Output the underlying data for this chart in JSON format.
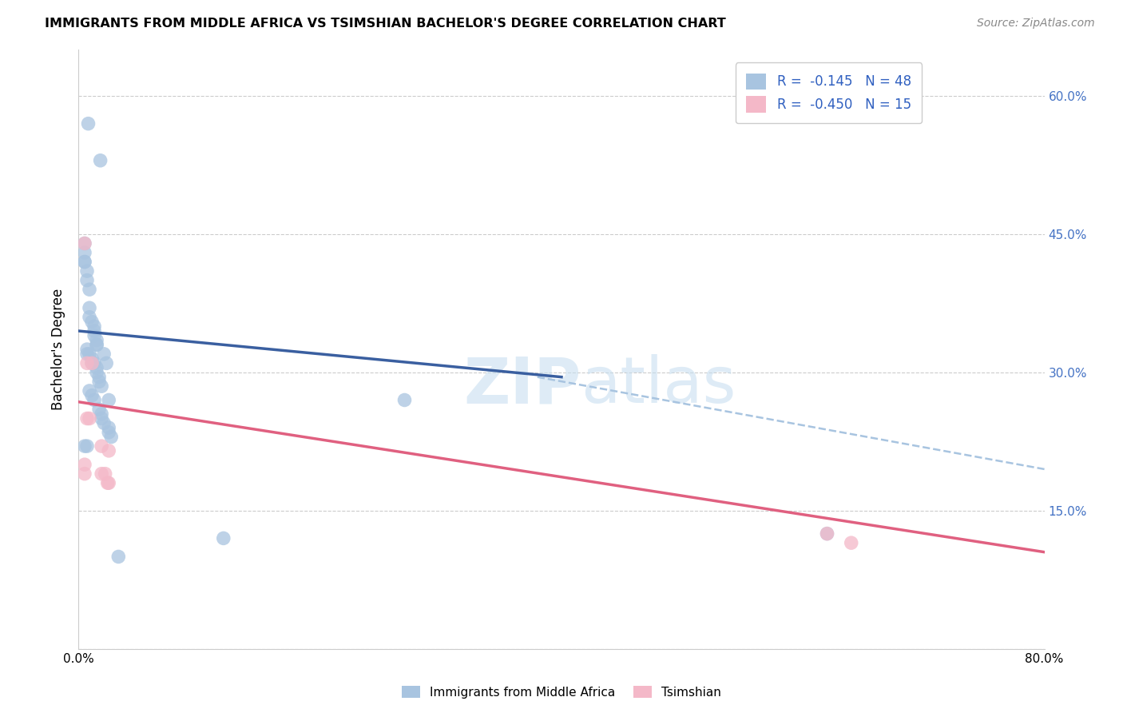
{
  "title": "IMMIGRANTS FROM MIDDLE AFRICA VS TSIMSHIAN BACHELOR'S DEGREE CORRELATION CHART",
  "source": "Source: ZipAtlas.com",
  "ylabel": "Bachelor's Degree",
  "xlim": [
    0.0,
    0.8
  ],
  "ylim": [
    0.0,
    0.65
  ],
  "xticks": [
    0.0,
    0.1,
    0.2,
    0.3,
    0.4,
    0.5,
    0.6,
    0.7,
    0.8
  ],
  "xticklabels": [
    "0.0%",
    "",
    "",
    "",
    "",
    "",
    "",
    "",
    "80.0%"
  ],
  "yticks": [
    0.0,
    0.15,
    0.3,
    0.45,
    0.6
  ],
  "yticklabels": [
    "",
    "15.0%",
    "30.0%",
    "45.0%",
    "60.0%"
  ],
  "grid_color": "#cccccc",
  "blue_color": "#a8c4e0",
  "pink_color": "#f4b8c8",
  "blue_line_color": "#3a5fa0",
  "pink_line_color": "#e06080",
  "dashed_line_color": "#a8c4e0",
  "watermark_zip": "ZIP",
  "watermark_atlas": "atlas",
  "legend_v1": "-0.145",
  "legend_n1": "N = 48",
  "legend_v2": "-0.450",
  "legend_n2": "N = 15",
  "blue_scatter_x": [
    0.008,
    0.018,
    0.005,
    0.005,
    0.005,
    0.005,
    0.007,
    0.007,
    0.009,
    0.009,
    0.009,
    0.011,
    0.013,
    0.013,
    0.013,
    0.015,
    0.015,
    0.015,
    0.007,
    0.007,
    0.009,
    0.011,
    0.011,
    0.013,
    0.015,
    0.015,
    0.017,
    0.017,
    0.019,
    0.009,
    0.011,
    0.013,
    0.017,
    0.019,
    0.019,
    0.021,
    0.025,
    0.025,
    0.027,
    0.021,
    0.023,
    0.005,
    0.007,
    0.025,
    0.27,
    0.62,
    0.12,
    0.033
  ],
  "blue_scatter_y": [
    0.57,
    0.53,
    0.44,
    0.43,
    0.42,
    0.42,
    0.41,
    0.4,
    0.39,
    0.37,
    0.36,
    0.355,
    0.35,
    0.345,
    0.34,
    0.335,
    0.33,
    0.33,
    0.325,
    0.32,
    0.32,
    0.315,
    0.31,
    0.31,
    0.305,
    0.3,
    0.295,
    0.29,
    0.285,
    0.28,
    0.275,
    0.27,
    0.26,
    0.255,
    0.25,
    0.245,
    0.24,
    0.235,
    0.23,
    0.32,
    0.31,
    0.22,
    0.22,
    0.27,
    0.27,
    0.125,
    0.12,
    0.1
  ],
  "pink_scatter_x": [
    0.005,
    0.005,
    0.005,
    0.007,
    0.007,
    0.009,
    0.011,
    0.019,
    0.025,
    0.019,
    0.025,
    0.022,
    0.024,
    0.62,
    0.64
  ],
  "pink_scatter_y": [
    0.44,
    0.2,
    0.19,
    0.31,
    0.25,
    0.25,
    0.31,
    0.22,
    0.215,
    0.19,
    0.18,
    0.19,
    0.18,
    0.125,
    0.115
  ],
  "blue_trend_x": [
    0.0,
    0.4
  ],
  "blue_trend_y": [
    0.345,
    0.295
  ],
  "pink_trend_x": [
    0.0,
    0.8
  ],
  "pink_trend_y": [
    0.268,
    0.105
  ],
  "dashed_trend_x": [
    0.38,
    0.8
  ],
  "dashed_trend_y": [
    0.295,
    0.195
  ]
}
